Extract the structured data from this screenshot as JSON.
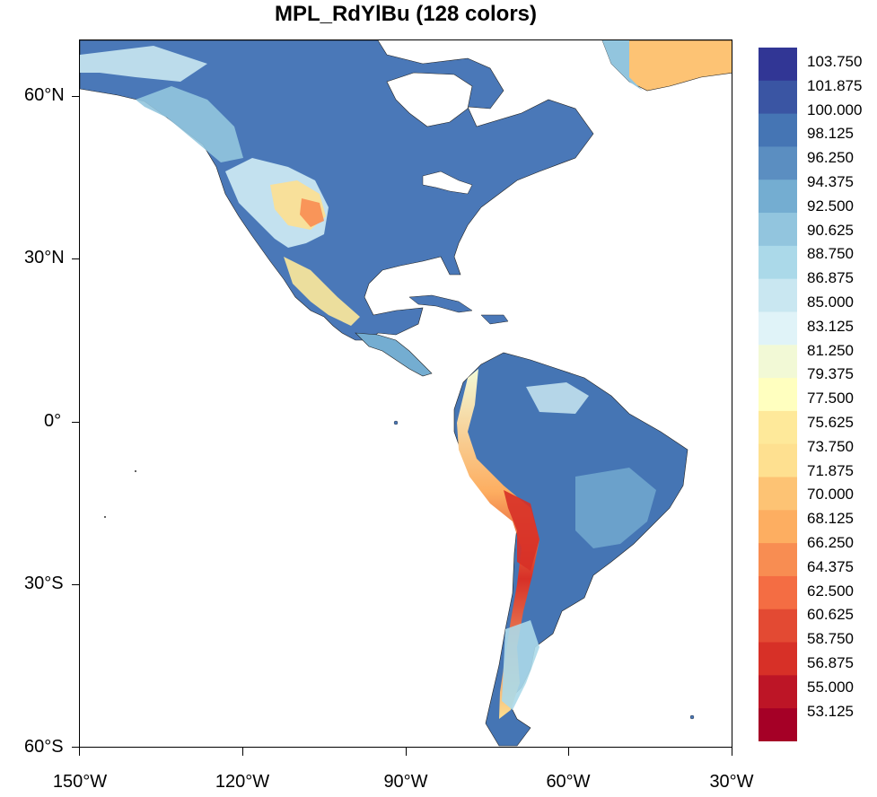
{
  "title": "MPL_RdYlBu (128 colors)",
  "map": {
    "lat_labels": [
      "60°N",
      "30°N",
      "0°",
      "30°S",
      "60°S"
    ],
    "lon_labels": [
      "150°W",
      "120°W",
      "90°W",
      "60°W",
      "30°W"
    ]
  },
  "colorbar": {
    "labels": [
      "103.750",
      "101.875",
      "100.000",
      "98.125",
      "96.250",
      "94.375",
      "92.500",
      "90.625",
      "88.750",
      "86.875",
      "85.000",
      "83.125",
      "81.250",
      "79.375",
      "77.500",
      "75.625",
      "73.750",
      "71.875",
      "70.000",
      "68.125",
      "66.250",
      "64.375",
      "62.500",
      "60.625",
      "58.750",
      "56.875",
      "55.000",
      "53.125"
    ],
    "colors": [
      "#313695",
      "#3a55a3",
      "#4575b4",
      "#5b8ec1",
      "#74add1",
      "#92c5de",
      "#abd9e9",
      "#c9e7f1",
      "#e0f3f8",
      "#f2f9d6",
      "#ffffbf",
      "#fee99a",
      "#fee090",
      "#fdc374",
      "#fdae61",
      "#f88d52",
      "#f46d43",
      "#e34a33",
      "#d73027",
      "#bd1526",
      "#a50026"
    ],
    "range_top": "103.750",
    "range_bottom": "53.125"
  }
}
